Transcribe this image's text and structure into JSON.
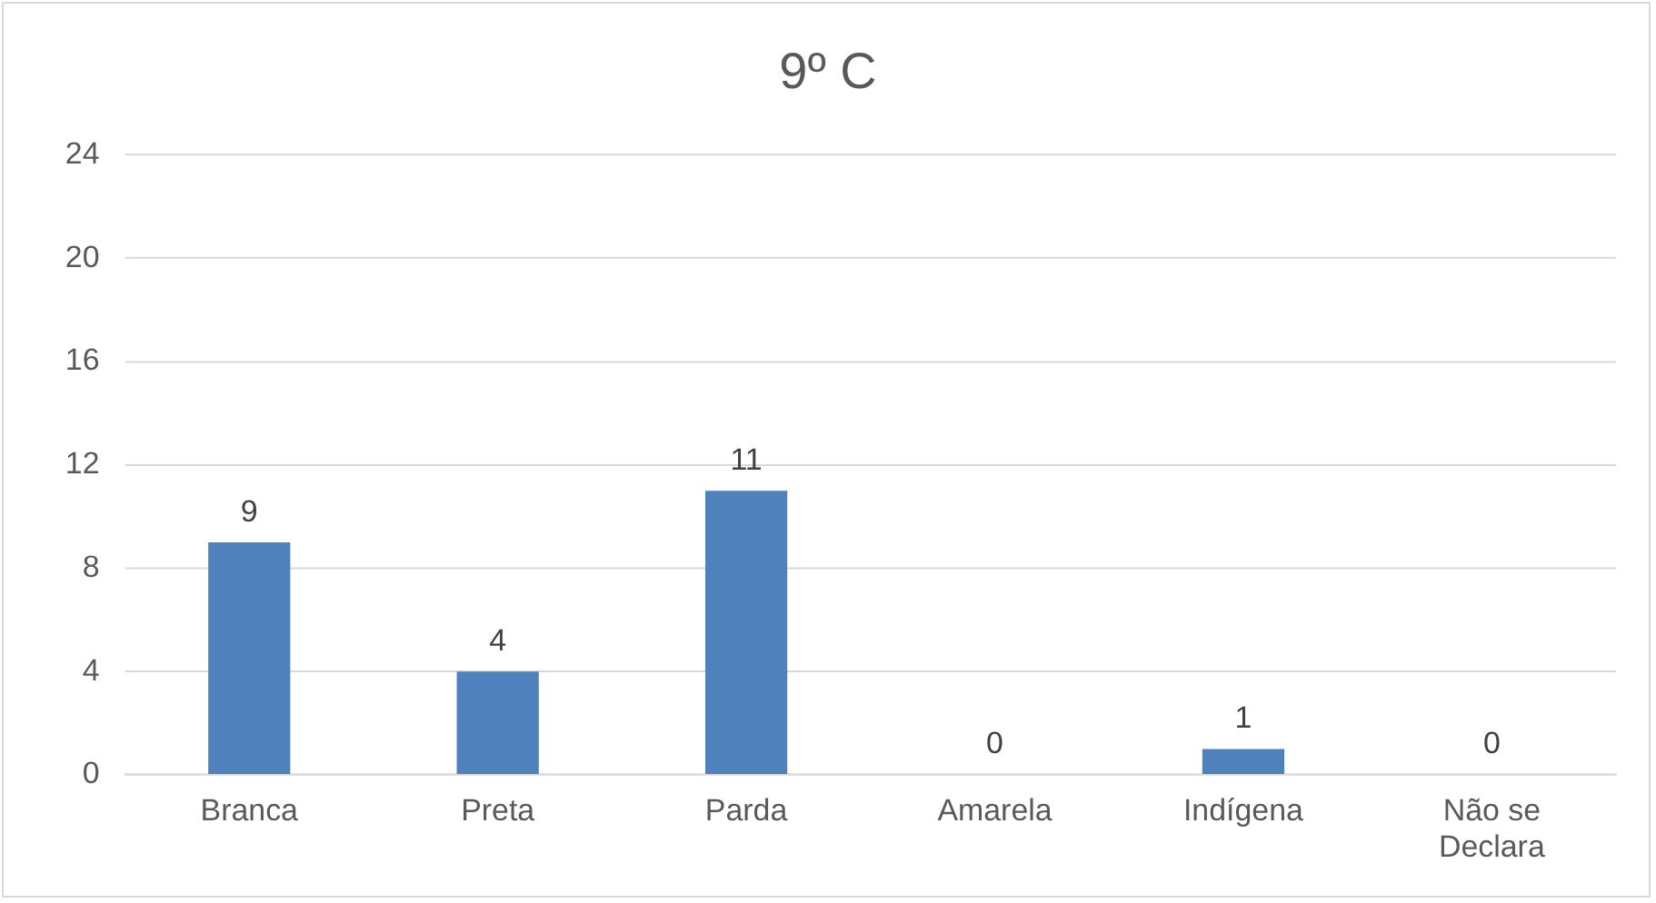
{
  "chart_data": {
    "type": "bar",
    "title": "9º C",
    "categories": [
      "Branca",
      "Preta",
      "Parda",
      "Amarela",
      "Indígena",
      "Não se Declara"
    ],
    "values": [
      9,
      4,
      11,
      0,
      1,
      0
    ],
    "color": "#4f81bd",
    "ylim": [
      0,
      24
    ],
    "yticks": [
      0,
      4,
      8,
      12,
      16,
      20,
      24
    ],
    "grid": "y",
    "data_labels": true
  }
}
